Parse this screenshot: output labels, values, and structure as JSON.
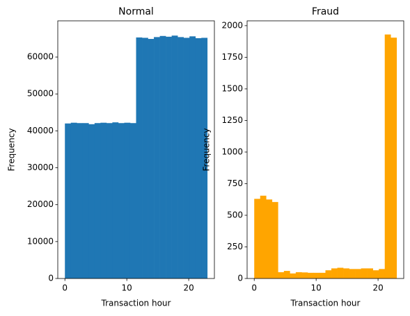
{
  "chart_data": [
    {
      "type": "histogram",
      "title": "Normal",
      "xlabel": "Transaction hour",
      "ylabel": "Frequency",
      "color": "#1f77b4",
      "bins": [
        0,
        0.9583,
        1.9167,
        2.875,
        3.8333,
        4.7917,
        5.75,
        6.7083,
        7.6667,
        8.625,
        9.5833,
        10.5417,
        11.5,
        12.4583,
        13.4167,
        14.375,
        15.3333,
        16.2917,
        17.25,
        18.2083,
        19.1667,
        20.125,
        21.0833,
        22.0417,
        23
      ],
      "values": [
        42000,
        42200,
        42100,
        42100,
        41800,
        42100,
        42200,
        42100,
        42300,
        42100,
        42200,
        42100,
        65300,
        65200,
        64900,
        65400,
        65700,
        65500,
        65800,
        65400,
        65200,
        65600,
        65100,
        65200
      ],
      "xlim": [
        -1.15,
        24.15
      ],
      "ylim": [
        0,
        69800
      ],
      "xticks": [
        0,
        10,
        20
      ],
      "yticks": [
        0,
        10000,
        20000,
        30000,
        40000,
        50000,
        60000
      ]
    },
    {
      "type": "histogram",
      "title": "Fraud",
      "xlabel": "Transaction hour",
      "ylabel": "Frequency",
      "color": "#ffa500",
      "bins": [
        0,
        0.9583,
        1.9167,
        2.875,
        3.8333,
        4.7917,
        5.75,
        6.7083,
        7.6667,
        8.625,
        9.5833,
        10.5417,
        11.5,
        12.4583,
        13.4167,
        14.375,
        15.3333,
        16.2917,
        17.25,
        18.2083,
        19.1667,
        20.125,
        21.0833,
        22.0417,
        23
      ],
      "values": [
        630,
        655,
        625,
        605,
        50,
        60,
        40,
        50,
        48,
        45,
        45,
        45,
        65,
        80,
        85,
        80,
        75,
        75,
        80,
        80,
        65,
        75,
        1930,
        1905
      ],
      "xlim": [
        -1.15,
        24.15
      ],
      "ylim": [
        0,
        2038
      ],
      "xticks": [
        0,
        10,
        20
      ],
      "yticks": [
        0,
        250,
        500,
        750,
        1000,
        1250,
        1500,
        1750,
        2000
      ]
    }
  ]
}
